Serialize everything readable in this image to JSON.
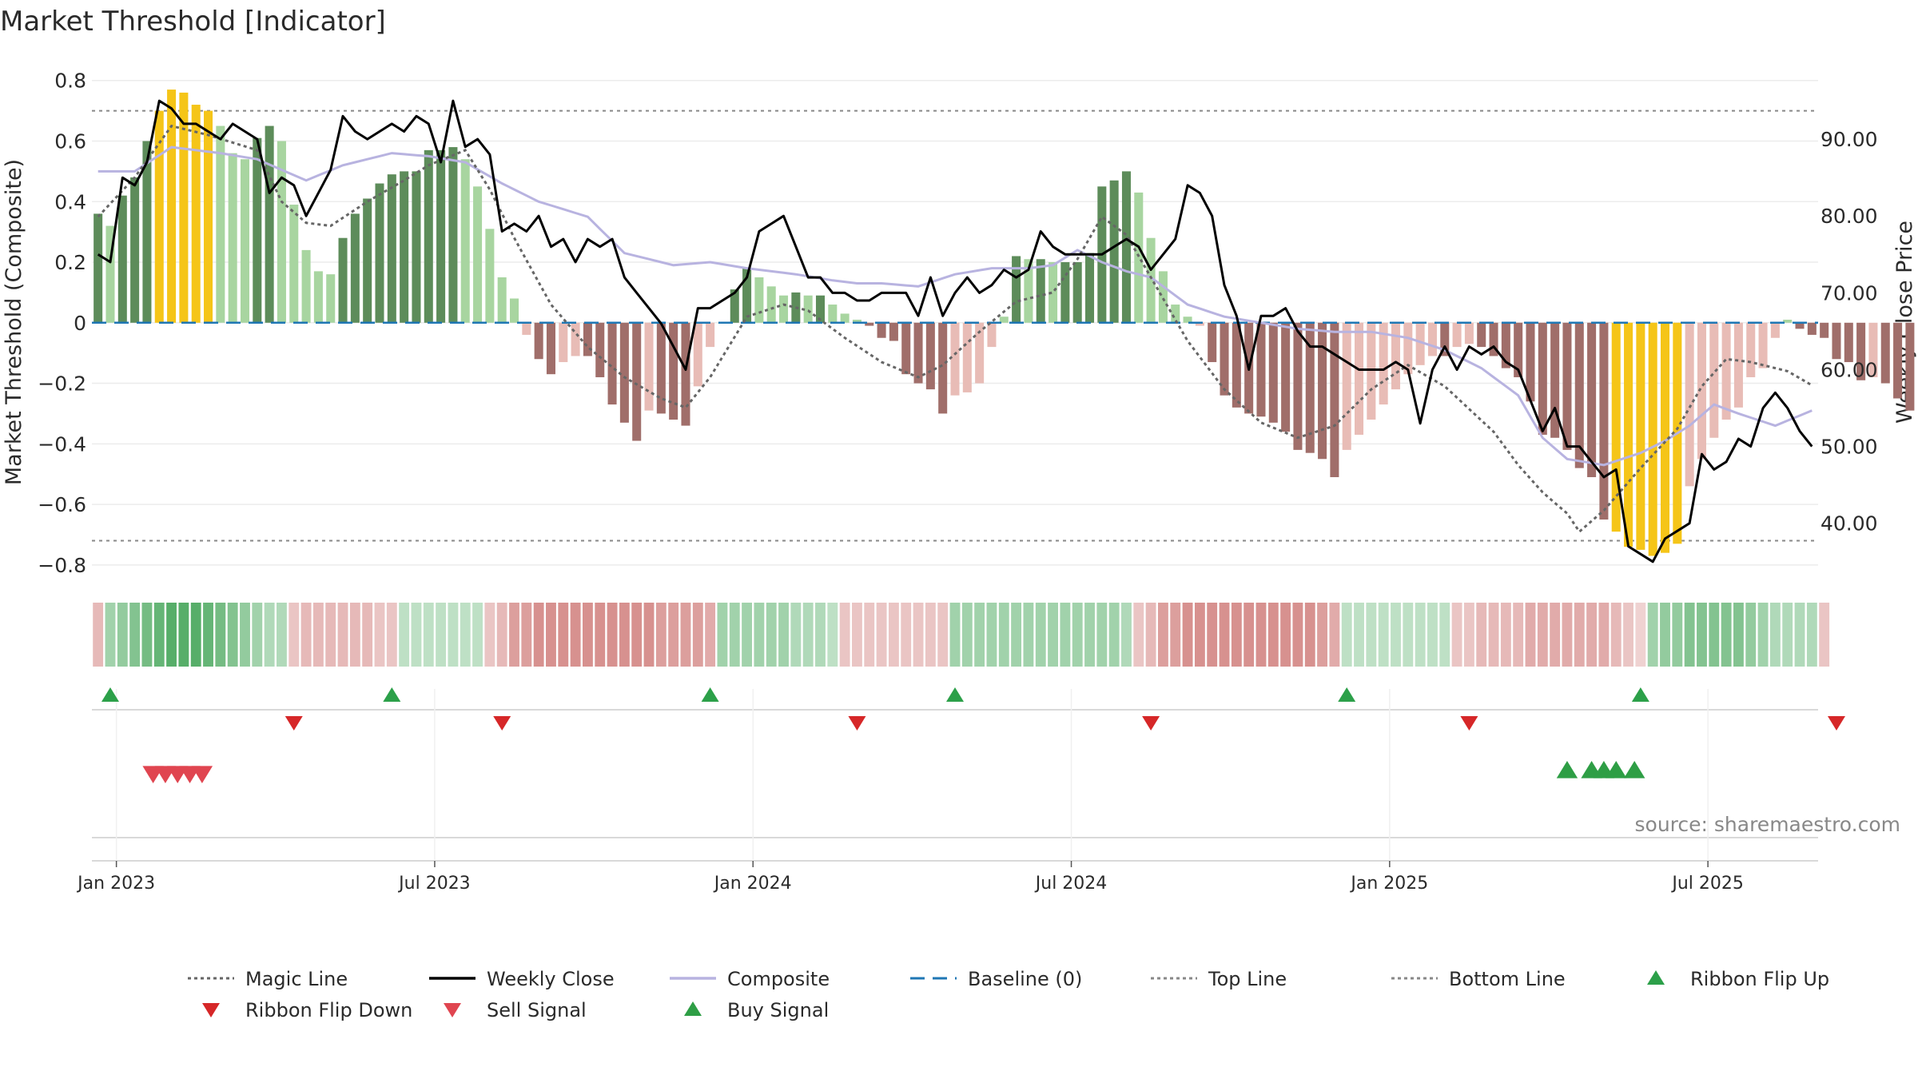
{
  "chart_data": {
    "type": "bar",
    "title": "Market Threshold [Indicator]",
    "ylabel_left": "Market Threshold (Composite)",
    "ylabel_right": "Weekly Close Price",
    "source": "source: sharemaestro.com",
    "left_axis": {
      "min": -0.84,
      "max": 0.86,
      "ticks": [
        0.8,
        0.6,
        0.4,
        0.2,
        0,
        -0.2,
        -0.4,
        -0.6,
        -0.8
      ],
      "tick_labels": [
        "0.8",
        "0.6",
        "0.4",
        "0.2",
        "0",
        "−0.2",
        "−0.4",
        "−0.6",
        "−0.8"
      ]
    },
    "right_axis": {
      "min": 33,
      "max": 100,
      "ticks": [
        90,
        80,
        70,
        60,
        50,
        40
      ],
      "tick_labels": [
        "90.00",
        "80.00",
        "70.00",
        "60.00",
        "50.00",
        "40.00"
      ]
    },
    "x_axis": {
      "weeks": 141,
      "first_week": "2022-12-24",
      "ticks": [
        {
          "label": "Jan 2023",
          "week": 1.5
        },
        {
          "label": "Jul 2023",
          "week": 27.5
        },
        {
          "label": "Jan 2024",
          "week": 53.5
        },
        {
          "label": "Jul 2024",
          "week": 79.5
        },
        {
          "label": "Jan 2025",
          "week": 105.5
        },
        {
          "label": "Jul 2025",
          "week": 131.5
        }
      ]
    },
    "top_line": 0.7,
    "bottom_line": -0.72,
    "baseline": 0,
    "composite_anchors": [
      [
        0,
        0.5
      ],
      [
        3,
        0.5
      ],
      [
        6,
        0.58
      ],
      [
        10,
        0.56
      ],
      [
        13,
        0.54
      ],
      [
        17,
        0.47
      ],
      [
        20,
        0.52
      ],
      [
        24,
        0.56
      ],
      [
        27,
        0.55
      ],
      [
        30,
        0.53
      ],
      [
        33,
        0.46
      ],
      [
        36,
        0.4
      ],
      [
        40,
        0.35
      ],
      [
        43,
        0.23
      ],
      [
        47,
        0.19
      ],
      [
        50,
        0.2
      ],
      [
        53,
        0.18
      ],
      [
        57,
        0.16
      ],
      [
        60,
        0.14
      ],
      [
        62,
        0.13
      ],
      [
        64,
        0.13
      ],
      [
        67,
        0.12
      ],
      [
        70,
        0.16
      ],
      [
        73,
        0.18
      ],
      [
        76,
        0.18
      ],
      [
        78,
        0.19
      ],
      [
        80,
        0.24
      ],
      [
        82,
        0.2
      ],
      [
        84,
        0.17
      ],
      [
        86,
        0.15
      ],
      [
        89,
        0.06
      ],
      [
        92,
        0.02
      ],
      [
        95,
        0.0
      ],
      [
        98,
        -0.02
      ],
      [
        101,
        -0.03
      ],
      [
        104,
        -0.03
      ],
      [
        107,
        -0.05
      ],
      [
        110,
        -0.09
      ],
      [
        113,
        -0.15
      ],
      [
        116,
        -0.24
      ],
      [
        118,
        -0.38
      ],
      [
        120,
        -0.45
      ],
      [
        123,
        -0.47
      ],
      [
        126,
        -0.43
      ],
      [
        128,
        -0.39
      ],
      [
        130,
        -0.34
      ],
      [
        132,
        -0.27
      ],
      [
        134,
        -0.3
      ],
      [
        137,
        -0.34
      ],
      [
        140,
        -0.29
      ],
      [
        141,
        -0.3
      ]
    ],
    "magic_anchors": [
      [
        0,
        0.35
      ],
      [
        3,
        0.48
      ],
      [
        6,
        0.65
      ],
      [
        9,
        0.62
      ],
      [
        13,
        0.57
      ],
      [
        15,
        0.4
      ],
      [
        17,
        0.33
      ],
      [
        19,
        0.32
      ],
      [
        22,
        0.4
      ],
      [
        25,
        0.47
      ],
      [
        27,
        0.52
      ],
      [
        30,
        0.57
      ],
      [
        32,
        0.44
      ],
      [
        34,
        0.28
      ],
      [
        37,
        0.06
      ],
      [
        40,
        -0.08
      ],
      [
        43,
        -0.18
      ],
      [
        46,
        -0.25
      ],
      [
        48,
        -0.28
      ],
      [
        50,
        -0.18
      ],
      [
        53,
        0.02
      ],
      [
        56,
        0.06
      ],
      [
        58,
        0.04
      ],
      [
        61,
        -0.05
      ],
      [
        64,
        -0.13
      ],
      [
        67,
        -0.18
      ],
      [
        69,
        -0.14
      ],
      [
        72,
        -0.03
      ],
      [
        75,
        0.07
      ],
      [
        78,
        0.1
      ],
      [
        80,
        0.21
      ],
      [
        82,
        0.35
      ],
      [
        84,
        0.29
      ],
      [
        86,
        0.15
      ],
      [
        89,
        -0.06
      ],
      [
        92,
        -0.22
      ],
      [
        95,
        -0.33
      ],
      [
        98,
        -0.38
      ],
      [
        101,
        -0.34
      ],
      [
        104,
        -0.22
      ],
      [
        107,
        -0.14
      ],
      [
        110,
        -0.21
      ],
      [
        114,
        -0.36
      ],
      [
        116,
        -0.47
      ],
      [
        118,
        -0.56
      ],
      [
        120,
        -0.63
      ],
      [
        121,
        -0.69
      ],
      [
        123,
        -0.62
      ],
      [
        126,
        -0.48
      ],
      [
        129,
        -0.35
      ],
      [
        131,
        -0.21
      ],
      [
        133,
        -0.12
      ],
      [
        135,
        -0.13
      ],
      [
        138,
        -0.16
      ],
      [
        141,
        -0.23
      ]
    ],
    "price_anchors": [
      [
        0,
        75
      ],
      [
        1,
        74
      ],
      [
        2,
        85
      ],
      [
        3,
        84
      ],
      [
        4,
        87
      ],
      [
        5,
        95
      ],
      [
        6,
        94
      ],
      [
        7,
        92
      ],
      [
        8,
        92
      ],
      [
        9,
        91
      ],
      [
        10,
        90
      ],
      [
        11,
        92
      ],
      [
        12,
        91
      ],
      [
        13,
        90
      ],
      [
        14,
        83
      ],
      [
        15,
        85
      ],
      [
        16,
        84
      ],
      [
        17,
        80
      ],
      [
        18,
        83
      ],
      [
        19,
        86
      ],
      [
        20,
        93
      ],
      [
        21,
        91
      ],
      [
        22,
        90
      ],
      [
        23,
        91
      ],
      [
        24,
        92
      ],
      [
        25,
        91
      ],
      [
        26,
        93
      ],
      [
        27,
        92
      ],
      [
        28,
        87
      ],
      [
        29,
        95
      ],
      [
        30,
        89
      ],
      [
        31,
        90
      ],
      [
        32,
        88
      ],
      [
        33,
        78
      ],
      [
        34,
        79
      ],
      [
        35,
        78
      ],
      [
        36,
        80
      ],
      [
        37,
        76
      ],
      [
        38,
        77
      ],
      [
        39,
        74
      ],
      [
        40,
        77
      ],
      [
        41,
        76
      ],
      [
        42,
        77
      ],
      [
        43,
        72
      ],
      [
        44,
        70
      ],
      [
        45,
        68
      ],
      [
        46,
        66
      ],
      [
        47,
        63
      ],
      [
        48,
        60
      ],
      [
        49,
        68
      ],
      [
        50,
        68
      ],
      [
        51,
        69
      ],
      [
        52,
        70
      ],
      [
        53,
        72
      ],
      [
        54,
        78
      ],
      [
        55,
        79
      ],
      [
        56,
        80
      ],
      [
        57,
        76
      ],
      [
        58,
        72
      ],
      [
        59,
        72
      ],
      [
        60,
        70
      ],
      [
        61,
        70
      ],
      [
        62,
        69
      ],
      [
        63,
        69
      ],
      [
        64,
        70
      ],
      [
        65,
        70
      ],
      [
        66,
        70
      ],
      [
        67,
        67
      ],
      [
        68,
        72
      ],
      [
        69,
        67
      ],
      [
        70,
        70
      ],
      [
        71,
        72
      ],
      [
        72,
        70
      ],
      [
        73,
        71
      ],
      [
        74,
        73
      ],
      [
        75,
        72
      ],
      [
        76,
        73
      ],
      [
        77,
        78
      ],
      [
        78,
        76
      ],
      [
        79,
        75
      ],
      [
        80,
        75
      ],
      [
        81,
        75
      ],
      [
        82,
        75
      ],
      [
        83,
        76
      ],
      [
        84,
        77
      ],
      [
        85,
        76
      ],
      [
        86,
        73
      ],
      [
        87,
        75
      ],
      [
        88,
        77
      ],
      [
        89,
        84
      ],
      [
        90,
        83
      ],
      [
        91,
        80
      ],
      [
        92,
        71
      ],
      [
        93,
        67
      ],
      [
        94,
        60
      ],
      [
        95,
        67
      ],
      [
        96,
        67
      ],
      [
        97,
        68
      ],
      [
        98,
        65
      ],
      [
        99,
        63
      ],
      [
        100,
        63
      ],
      [
        101,
        62
      ],
      [
        102,
        61
      ],
      [
        103,
        60
      ],
      [
        104,
        60
      ],
      [
        105,
        60
      ],
      [
        106,
        61
      ],
      [
        107,
        60
      ],
      [
        108,
        53
      ],
      [
        109,
        60
      ],
      [
        110,
        63
      ],
      [
        111,
        60
      ],
      [
        112,
        63
      ],
      [
        113,
        62
      ],
      [
        114,
        63
      ],
      [
        115,
        61
      ],
      [
        116,
        60
      ],
      [
        117,
        56
      ],
      [
        118,
        52
      ],
      [
        119,
        55
      ],
      [
        120,
        50
      ],
      [
        121,
        50
      ],
      [
        122,
        48
      ],
      [
        123,
        46
      ],
      [
        124,
        47
      ],
      [
        125,
        37
      ],
      [
        126,
        36
      ],
      [
        127,
        35
      ],
      [
        128,
        38
      ],
      [
        129,
        39
      ],
      [
        130,
        40
      ],
      [
        131,
        49
      ],
      [
        132,
        47
      ],
      [
        133,
        48
      ],
      [
        134,
        51
      ],
      [
        135,
        50
      ],
      [
        136,
        55
      ],
      [
        137,
        57
      ],
      [
        138,
        55
      ],
      [
        139,
        52
      ],
      [
        140,
        50
      ],
      [
        141,
        50
      ]
    ],
    "bars": {
      "values": [
        0.36,
        0.32,
        0.42,
        0.48,
        0.6,
        0.7,
        0.77,
        0.76,
        0.72,
        0.7,
        0.65,
        0.56,
        0.54,
        0.61,
        0.65,
        0.6,
        0.39,
        0.24,
        0.17,
        0.16,
        0.28,
        0.36,
        0.41,
        0.46,
        0.49,
        0.5,
        0.5,
        0.57,
        0.57,
        0.58,
        0.54,
        0.45,
        0.31,
        0.15,
        0.08,
        -0.04,
        -0.12,
        -0.17,
        -0.13,
        -0.11,
        -0.11,
        -0.18,
        -0.27,
        -0.33,
        -0.39,
        -0.29,
        -0.3,
        -0.32,
        -0.34,
        -0.21,
        -0.08,
        0.0,
        0.11,
        0.18,
        0.15,
        0.12,
        0.09,
        0.1,
        0.09,
        0.09,
        0.06,
        0.03,
        0.01,
        -0.01,
        -0.05,
        -0.06,
        -0.17,
        -0.2,
        -0.22,
        -0.3,
        -0.24,
        -0.23,
        -0.2,
        -0.08,
        0.02,
        0.22,
        0.21,
        0.21,
        0.2,
        0.2,
        0.2,
        0.23,
        0.45,
        0.47,
        0.5,
        0.43,
        0.28,
        0.17,
        0.06,
        0.02,
        -0.01,
        -0.13,
        -0.24,
        -0.28,
        -0.3,
        -0.31,
        -0.33,
        -0.36,
        -0.42,
        -0.43,
        -0.45,
        -0.51,
        -0.42,
        -0.37,
        -0.32,
        -0.27,
        -0.22,
        -0.17,
        -0.14,
        -0.11,
        -0.11,
        -0.08,
        -0.07,
        -0.08,
        -0.11,
        -0.15,
        -0.18,
        -0.26,
        -0.37,
        -0.38,
        -0.42,
        -0.48,
        -0.51,
        -0.65,
        -0.69,
        -0.74,
        -0.75,
        -0.77,
        -0.76,
        -0.73,
        -0.54,
        -0.45,
        -0.38,
        -0.32,
        -0.28,
        -0.18,
        -0.15,
        -0.05,
        0.01,
        -0.02,
        -0.04,
        -0.05,
        -0.12,
        -0.13,
        -0.19,
        -0.18,
        -0.2,
        -0.25,
        -0.29
      ],
      "colors": {
        "strong_pos": "#5d8c5a",
        "weak_pos": "#a8d5a0",
        "strong_neg": "#a06e6a",
        "weak_neg": "#e8bcb6",
        "extreme": "#f5c518"
      }
    },
    "ribbon": {
      "values": [
        -0.3,
        0.4,
        0.5,
        0.6,
        0.7,
        0.8,
        0.9,
        0.9,
        0.9,
        0.8,
        0.7,
        0.6,
        0.5,
        0.4,
        0.3,
        0.3,
        -0.2,
        -0.3,
        -0.3,
        -0.3,
        -0.3,
        -0.3,
        -0.3,
        -0.2,
        -0.2,
        0.2,
        0.2,
        0.2,
        0.2,
        0.2,
        0.2,
        0.2,
        -0.2,
        -0.3,
        -0.5,
        -0.5,
        -0.6,
        -0.6,
        -0.6,
        -0.6,
        -0.6,
        -0.6,
        -0.6,
        -0.6,
        -0.6,
        -0.6,
        -0.5,
        -0.5,
        -0.5,
        -0.5,
        -0.4,
        0.4,
        0.4,
        0.4,
        0.4,
        0.4,
        0.4,
        0.3,
        0.3,
        0.3,
        0.2,
        -0.2,
        -0.2,
        -0.2,
        -0.2,
        -0.2,
        -0.2,
        -0.2,
        -0.2,
        -0.2,
        0.4,
        0.4,
        0.4,
        0.4,
        0.4,
        0.4,
        0.4,
        0.4,
        0.4,
        0.4,
        0.4,
        0.4,
        0.4,
        0.4,
        0.3,
        -0.2,
        -0.3,
        -0.5,
        -0.5,
        -0.6,
        -0.6,
        -0.6,
        -0.6,
        -0.6,
        -0.6,
        -0.6,
        -0.6,
        -0.6,
        -0.6,
        -0.6,
        -0.5,
        -0.4,
        0.2,
        0.2,
        0.2,
        0.2,
        0.2,
        0.2,
        0.2,
        0.2,
        0.2,
        -0.2,
        -0.2,
        -0.3,
        -0.3,
        -0.3,
        -0.3,
        -0.4,
        -0.4,
        -0.4,
        -0.4,
        -0.4,
        -0.4,
        -0.4,
        -0.3,
        -0.2,
        -0.1,
        0.4,
        0.5,
        0.5,
        0.6,
        0.6,
        0.6,
        0.6,
        0.6,
        0.5,
        0.4,
        0.3,
        0.3,
        0.3,
        0.3,
        -0.2
      ],
      "colors": {
        "pos": "#3aa04f",
        "neg": "#c0504d"
      }
    },
    "signals": {
      "ribbon_flip_up_weeks": [
        1,
        24,
        50,
        70,
        102,
        126
      ],
      "ribbon_flip_down_weeks": [
        16,
        33,
        62,
        86,
        112,
        142
      ],
      "sell_signal_weeks": [
        4.5,
        5.5,
        6.5,
        7.5,
        8.5
      ],
      "buy_signal_weeks": [
        120,
        122,
        123,
        124,
        125.5
      ],
      "colors": {
        "flip_up": "#2ca049",
        "flip_down": "#d62728",
        "sell": "#e04550",
        "buy": "#2e9e45"
      }
    },
    "series_colors": {
      "magic": "#666666",
      "close": "#000000",
      "composite": "#b8b3e0",
      "baseline": "#1f77b4",
      "top": "#888888",
      "bottom": "#888888"
    },
    "legend": [
      {
        "label": "Magic Line",
        "kind": "dotted",
        "color": "#666666"
      },
      {
        "label": "Weekly Close",
        "kind": "solid",
        "color": "#000000"
      },
      {
        "label": "Composite",
        "kind": "solid",
        "color": "#b8b3e0"
      },
      {
        "label": "Baseline (0)",
        "kind": "dashed",
        "color": "#1f77b4"
      },
      {
        "label": "Top Line",
        "kind": "dotted",
        "color": "#888888"
      },
      {
        "label": "Bottom Line",
        "kind": "dotted",
        "color": "#888888"
      },
      {
        "label": "Ribbon Flip Up",
        "kind": "tri-up",
        "color": "#2ca049"
      },
      {
        "label": "Ribbon Flip Down",
        "kind": "tri-down",
        "color": "#d62728"
      },
      {
        "label": "Sell Signal",
        "kind": "tri-down",
        "color": "#e04550"
      },
      {
        "label": "Buy Signal",
        "kind": "tri-up",
        "color": "#2e9e45"
      }
    ]
  }
}
